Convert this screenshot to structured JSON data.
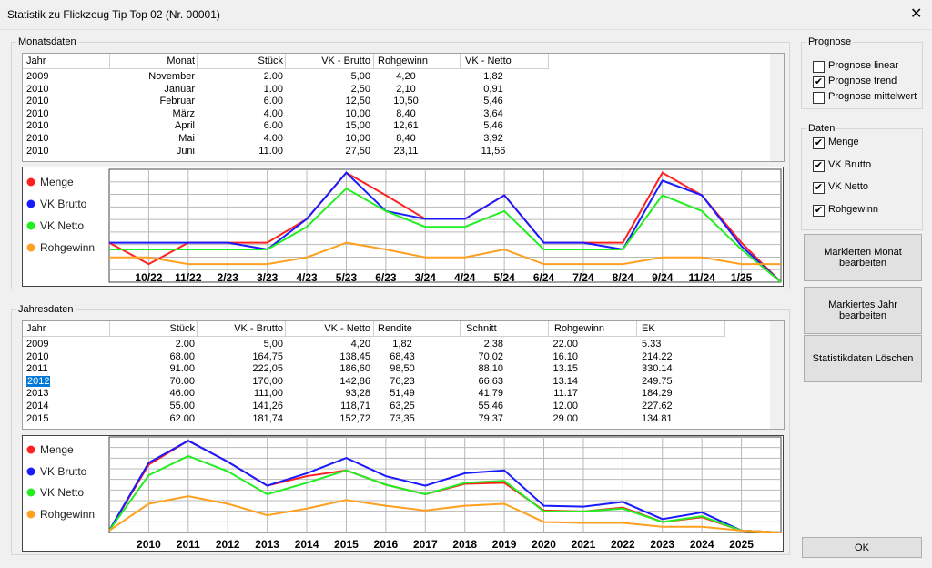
{
  "window": {
    "title": "Statistik zu Flickzeug Tip Top 02 (Nr. 00001)"
  },
  "monthly": {
    "group_label": "Monatsdaten",
    "columns": [
      "Jahr",
      "Monat",
      "Stück",
      "VK - Brutto",
      "Rohgewinn",
      "VK - Netto"
    ],
    "rows": [
      [
        "2009",
        "November",
        "2.00",
        "5,00",
        "4,20",
        "1,82"
      ],
      [
        "2010",
        "Januar",
        "1.00",
        "2,50",
        "2,10",
        "0,91"
      ],
      [
        "2010",
        "Februar",
        "6.00",
        "12,50",
        "10,50",
        "5,46"
      ],
      [
        "2010",
        "März",
        "4.00",
        "10,00",
        "8,40",
        "3,64"
      ],
      [
        "2010",
        "April",
        "6.00",
        "15,00",
        "12,61",
        "5,46"
      ],
      [
        "2010",
        "Mai",
        "4.00",
        "10,00",
        "8,40",
        "3,92"
      ],
      [
        "2010",
        "Juni",
        "11.00",
        "27,50",
        "23,11",
        "11,56"
      ]
    ]
  },
  "yearly": {
    "group_label": "Jahresdaten",
    "selected_row": 3,
    "columns": [
      "Jahr",
      "Stück",
      "VK - Brutto",
      "VK - Netto",
      "Rendite",
      "Schnitt",
      "Rohgewinn",
      "EK"
    ],
    "rows": [
      [
        "2009",
        "2.00",
        "5,00",
        "4,20",
        "1,82",
        "2,38",
        "22.00",
        "5.33"
      ],
      [
        "2010",
        "68.00",
        "164,75",
        "138,45",
        "68,43",
        "70,02",
        "16.10",
        "214.22"
      ],
      [
        "2011",
        "91.00",
        "222,05",
        "186,60",
        "98,50",
        "88,10",
        "13.15",
        "330.14"
      ],
      [
        "2012",
        "70.00",
        "170,00",
        "142,86",
        "76,23",
        "66,63",
        "13.14",
        "249.75"
      ],
      [
        "2013",
        "46.00",
        "111,00",
        "93,28",
        "51,49",
        "41,79",
        "11.17",
        "184.29"
      ],
      [
        "2014",
        "55.00",
        "141,26",
        "118,71",
        "63,25",
        "55,46",
        "12.00",
        "227.62"
      ],
      [
        "2015",
        "62.00",
        "181,74",
        "152,72",
        "73,35",
        "79,37",
        "29.00",
        "134.81"
      ]
    ]
  },
  "chart_data": [
    {
      "type": "line",
      "ylim": [
        0,
        100
      ],
      "categories": [
        null,
        "10/22",
        "11/22",
        "2/23",
        "3/23",
        "4/23",
        "5/23",
        "6/23",
        "3/24",
        "4/24",
        "5/24",
        "6/24",
        "7/24",
        "8/24",
        "9/24",
        "11/24",
        "1/25",
        null
      ],
      "series": [
        {
          "name": "Menge",
          "color": "#ff2020",
          "values": [
            35,
            16,
            35,
            35,
            35,
            56,
            97,
            77,
            56,
            56,
            77,
            35,
            35,
            35,
            97,
            77,
            35,
            0
          ]
        },
        {
          "name": "VK Brutto",
          "color": "#1a1aff",
          "values": [
            35,
            35,
            35,
            35,
            29,
            56,
            97,
            63,
            56,
            56,
            77,
            35,
            35,
            29,
            90,
            77,
            32,
            0
          ]
        },
        {
          "name": "VK Netto",
          "color": "#22ee22",
          "values": [
            29,
            29,
            29,
            29,
            29,
            49,
            83,
            63,
            49,
            49,
            63,
            29,
            29,
            29,
            77,
            63,
            29,
            0
          ]
        },
        {
          "name": "Rohgewinn",
          "color": "#ffa020",
          "values": [
            22,
            22,
            16,
            16,
            16,
            22,
            35,
            29,
            22,
            22,
            29,
            16,
            16,
            16,
            22,
            22,
            16,
            16
          ]
        }
      ]
    },
    {
      "type": "line",
      "ylim": [
        0,
        100
      ],
      "categories": [
        null,
        "2010",
        "2011",
        "2012",
        "2013",
        "2014",
        "2015",
        "2016",
        "2017",
        "2018",
        "2019",
        "2020",
        "2021",
        "2022",
        "2023",
        "2024",
        "2025",
        null
      ],
      "series": [
        {
          "name": "Menge",
          "color": "#ff2020",
          "values": [
            2,
            71,
            96,
            74,
            49,
            59,
            65,
            50,
            40,
            51,
            52,
            23,
            22,
            26,
            11,
            16,
            2,
            0
          ]
        },
        {
          "name": "VK Brutto",
          "color": "#1a1aff",
          "values": [
            2,
            73,
            96,
            74,
            49,
            62,
            78,
            59,
            49,
            62,
            65,
            28,
            27,
            32,
            14,
            21,
            2,
            0
          ]
        },
        {
          "name": "VK Netto",
          "color": "#22ee22",
          "values": [
            2,
            60,
            80,
            64,
            40,
            52,
            65,
            50,
            40,
            52,
            54,
            22,
            22,
            25,
            11,
            17,
            2,
            0
          ]
        },
        {
          "name": "Rohgewinn",
          "color": "#ffa020",
          "values": [
            2,
            30,
            38,
            30,
            18,
            25,
            34,
            28,
            23,
            28,
            30,
            11,
            10,
            10,
            6,
            6,
            2,
            0
          ]
        }
      ]
    }
  ],
  "prognose": {
    "label": "Prognose",
    "options": [
      {
        "label": "Prognose linear",
        "checked": false
      },
      {
        "label": "Prognose trend",
        "checked": true
      },
      {
        "label": "Prognose mittelwert",
        "checked": false
      }
    ]
  },
  "daten": {
    "label": "Daten",
    "options": [
      {
        "label": "Menge",
        "checked": true
      },
      {
        "label": "VK Brutto",
        "checked": true
      },
      {
        "label": "VK Netto",
        "checked": true
      },
      {
        "label": "Rohgewinn",
        "checked": true
      }
    ]
  },
  "buttons": [
    "Markierten Monat bearbeiten",
    "Markiertes Jahr bearbeiten",
    "Statistikdaten Löschen",
    "OK"
  ]
}
